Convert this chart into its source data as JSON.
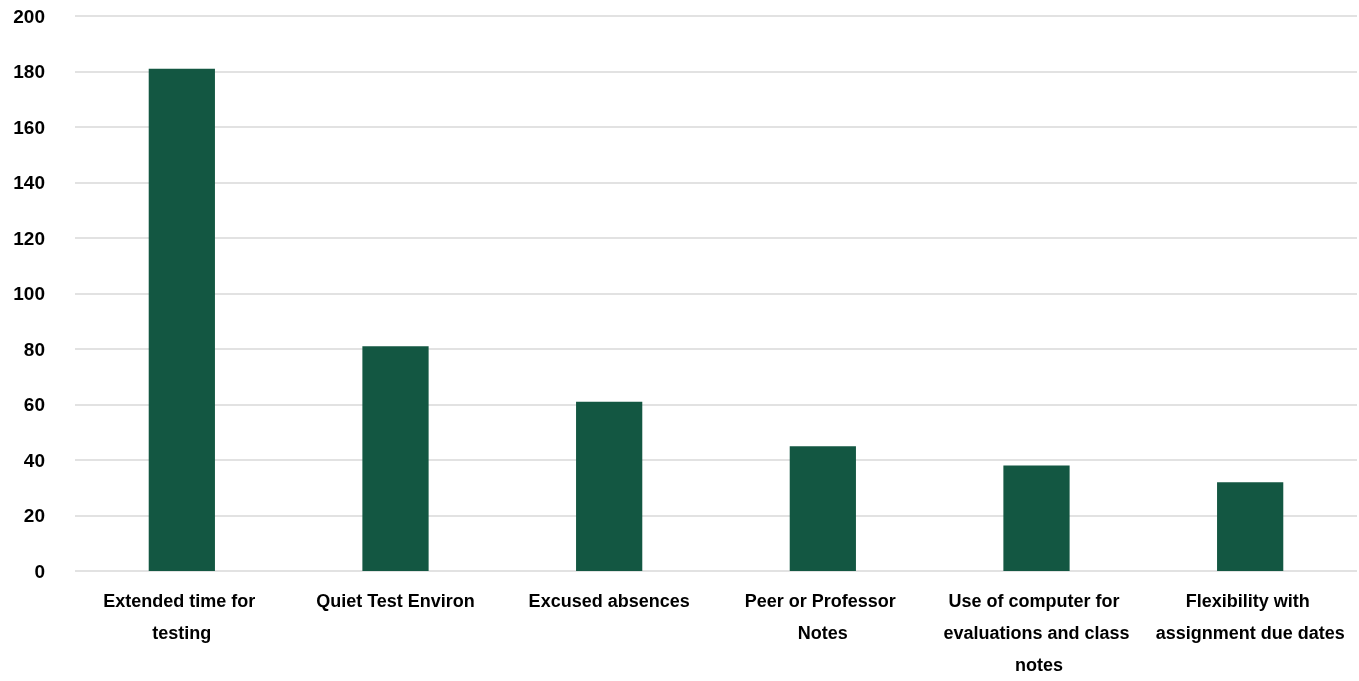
{
  "chart_data": {
    "type": "bar",
    "categories": [
      "Extended time for testing",
      "Quiet Test Environ",
      "Excused absences",
      "Peer or Professor Notes",
      "Use of computer for evaluations and class notes",
      "Flexibility with assignment due dates"
    ],
    "values": [
      181,
      81,
      61,
      45,
      38,
      32
    ],
    "color": "#135742",
    "ylim": [
      0,
      200
    ],
    "yticks": [
      0,
      20,
      40,
      60,
      80,
      100,
      120,
      140,
      160,
      180,
      200
    ],
    "grid": "y"
  }
}
